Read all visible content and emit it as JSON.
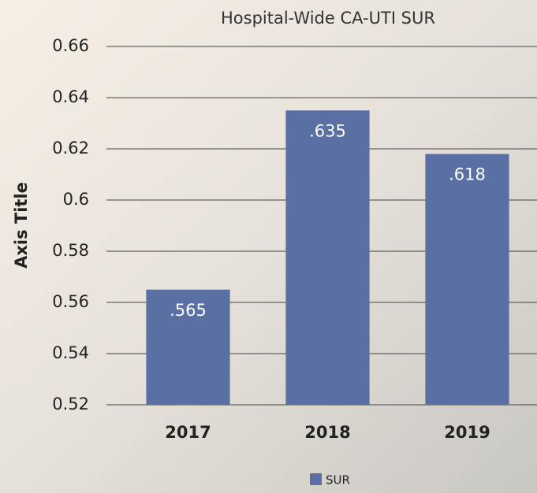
{
  "chart_data": {
    "type": "bar",
    "title": "Hospital-Wide CA-UTI SUR",
    "y_label": "Axis Title",
    "categories": [
      "2017",
      "2018",
      "2019"
    ],
    "series": [
      {
        "name": "SUR",
        "color": "#5a6fa3",
        "values": [
          0.565,
          0.635,
          0.618
        ],
        "value_labels": [
          ".565",
          ".635",
          ".618"
        ]
      }
    ],
    "ylim": [
      0.52,
      0.66
    ],
    "yticks": [
      0.52,
      0.54,
      0.56,
      0.58,
      0.6,
      0.62,
      0.64,
      0.66
    ],
    "grid": true,
    "legend": "bottom"
  }
}
